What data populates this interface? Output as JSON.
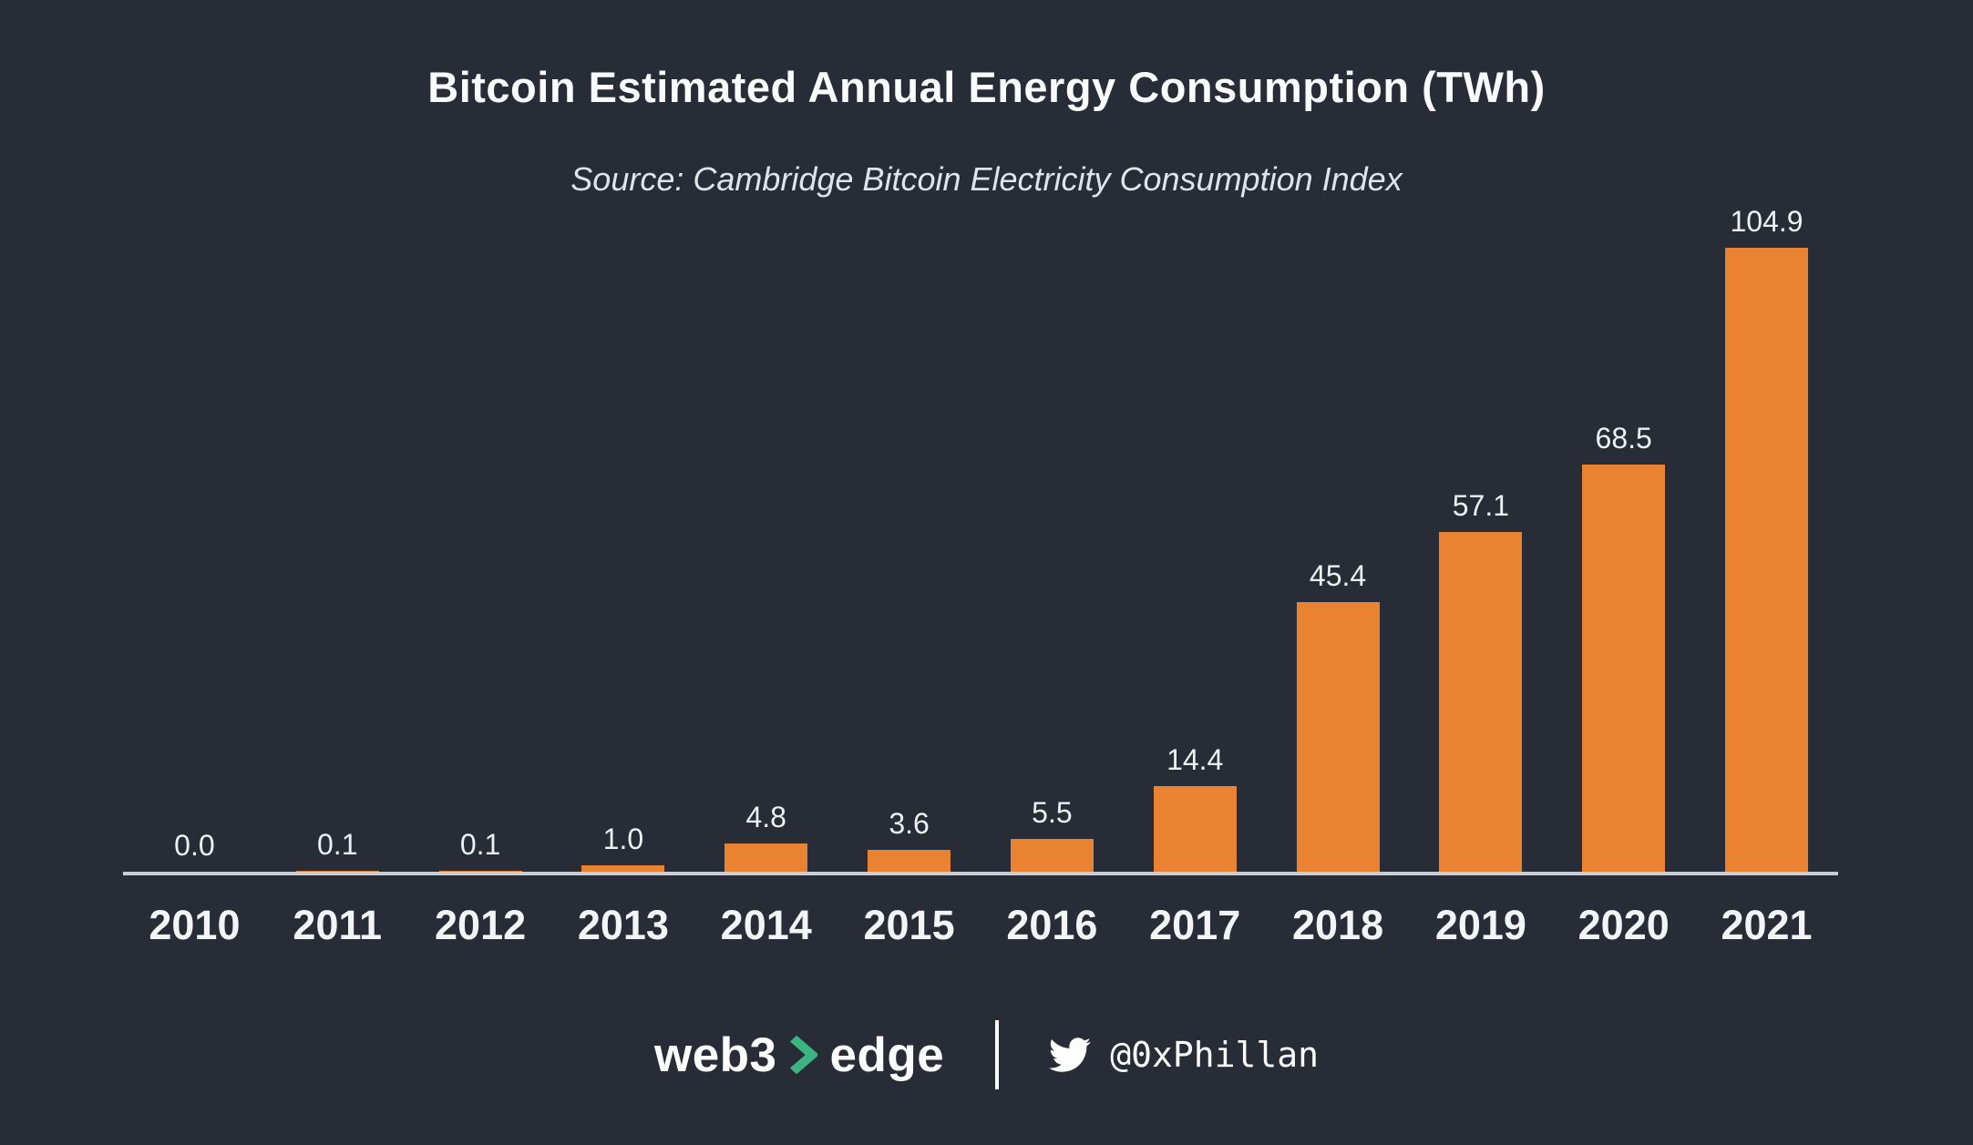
{
  "title": "Bitcoin Estimated Annual Energy Consumption (TWh)",
  "subtitle": "Source: Cambridge Bitcoin Electricity Consumption Index",
  "chart_data": {
    "type": "bar",
    "title": "Bitcoin Estimated Annual Energy Consumption (TWh)",
    "source": "Cambridge Bitcoin Electricity Consumption Index",
    "categories": [
      "2010",
      "2011",
      "2012",
      "2013",
      "2014",
      "2015",
      "2016",
      "2017",
      "2018",
      "2019",
      "2020",
      "2021"
    ],
    "values": [
      0.0,
      0.1,
      0.1,
      1.0,
      4.8,
      3.6,
      5.5,
      14.4,
      45.4,
      57.1,
      68.5,
      104.9
    ],
    "xlabel": "",
    "ylabel": "",
    "ylim": [
      0,
      110
    ],
    "grid": false,
    "legend": false,
    "value_labels_shown": true,
    "bar_color": "#ea8331",
    "axis_line_color": "#c9cdd6",
    "label_color": "#eef0f3",
    "background_color": "#282c36"
  },
  "footer": {
    "brand": {
      "left": "web3",
      "right": "edge",
      "chevron_icon": "chevron-right",
      "chevron_color": "#3bb482"
    },
    "twitter": {
      "icon": "twitter-bird",
      "handle": "@0xPhillan"
    }
  }
}
